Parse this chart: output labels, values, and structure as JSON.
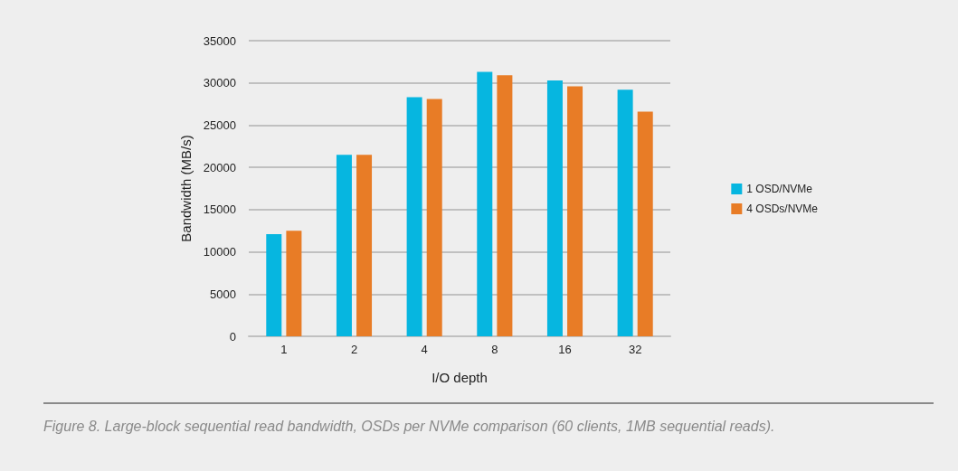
{
  "chart_data": {
    "type": "bar",
    "xlabel": "I/O depth",
    "ylabel": "Bandwidth (MB/s)",
    "categories": [
      "1",
      "2",
      "4",
      "8",
      "16",
      "32"
    ],
    "series": [
      {
        "name": "1 OSD/NVMe",
        "color": "#06b6e0",
        "values": [
          12100,
          21500,
          28300,
          31300,
          30300,
          29200
        ]
      },
      {
        "name": "4 OSDs/NVMe",
        "color": "#e87c26",
        "values": [
          12500,
          21500,
          28100,
          30900,
          29600,
          26600
        ]
      }
    ],
    "ylim": [
      0,
      35000
    ],
    "yticks": [
      0,
      5000,
      10000,
      15000,
      20000,
      25000,
      30000,
      35000
    ],
    "grid": "y",
    "legend": "right",
    "annotations": [
      "Figure 8. Large-block sequential read bandwidth, OSDs per NVMe comparison (60 clients, 1MB sequential reads)."
    ]
  }
}
